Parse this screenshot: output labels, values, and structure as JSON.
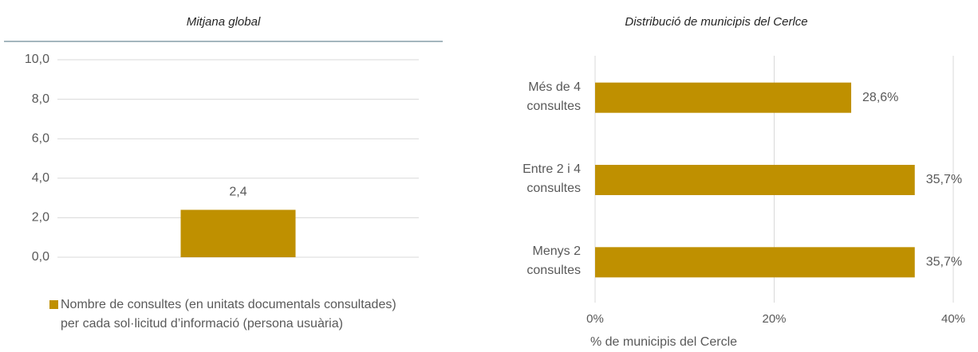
{
  "chart_data": [
    {
      "type": "bar",
      "title": "Mitjana global",
      "categories": [
        null
      ],
      "series": [
        {
          "name": "Nombre de consultes (en unitats documentals consultades) per cada sol·licitud d’informació (persona usuària)",
          "color": "#bf9000",
          "values": [
            2.4
          ],
          "value_labels": [
            "2,4"
          ]
        }
      ],
      "ylim": [
        0,
        10
      ],
      "yticks": [
        {
          "value": 0,
          "label": "0,0"
        },
        {
          "value": 2,
          "label": "2,0"
        },
        {
          "value": 4,
          "label": "4,0"
        },
        {
          "value": 6,
          "label": "6,0"
        },
        {
          "value": 8,
          "label": "8,0"
        },
        {
          "value": 10,
          "label": "10,0"
        }
      ],
      "grid": true,
      "legend": "bottom"
    },
    {
      "type": "barh",
      "title": "Distribució de municipis del Cerlce",
      "categories": [
        "Més de 4 consultes",
        "Entre 2 i 4 consultes",
        "Menys 2 consultes"
      ],
      "values": [
        28.6,
        35.7,
        35.7
      ],
      "value_labels": [
        "28,6%",
        "35,7%",
        "35,7%"
      ],
      "color": "#bf9000",
      "xlabel": "% de  municipis del Cercle",
      "xlim": [
        0,
        40
      ],
      "xticks": [
        {
          "value": 0,
          "label": "0%"
        },
        {
          "value": 20,
          "label": "20%"
        },
        {
          "value": 40,
          "label": "40%"
        }
      ],
      "grid": true
    }
  ]
}
